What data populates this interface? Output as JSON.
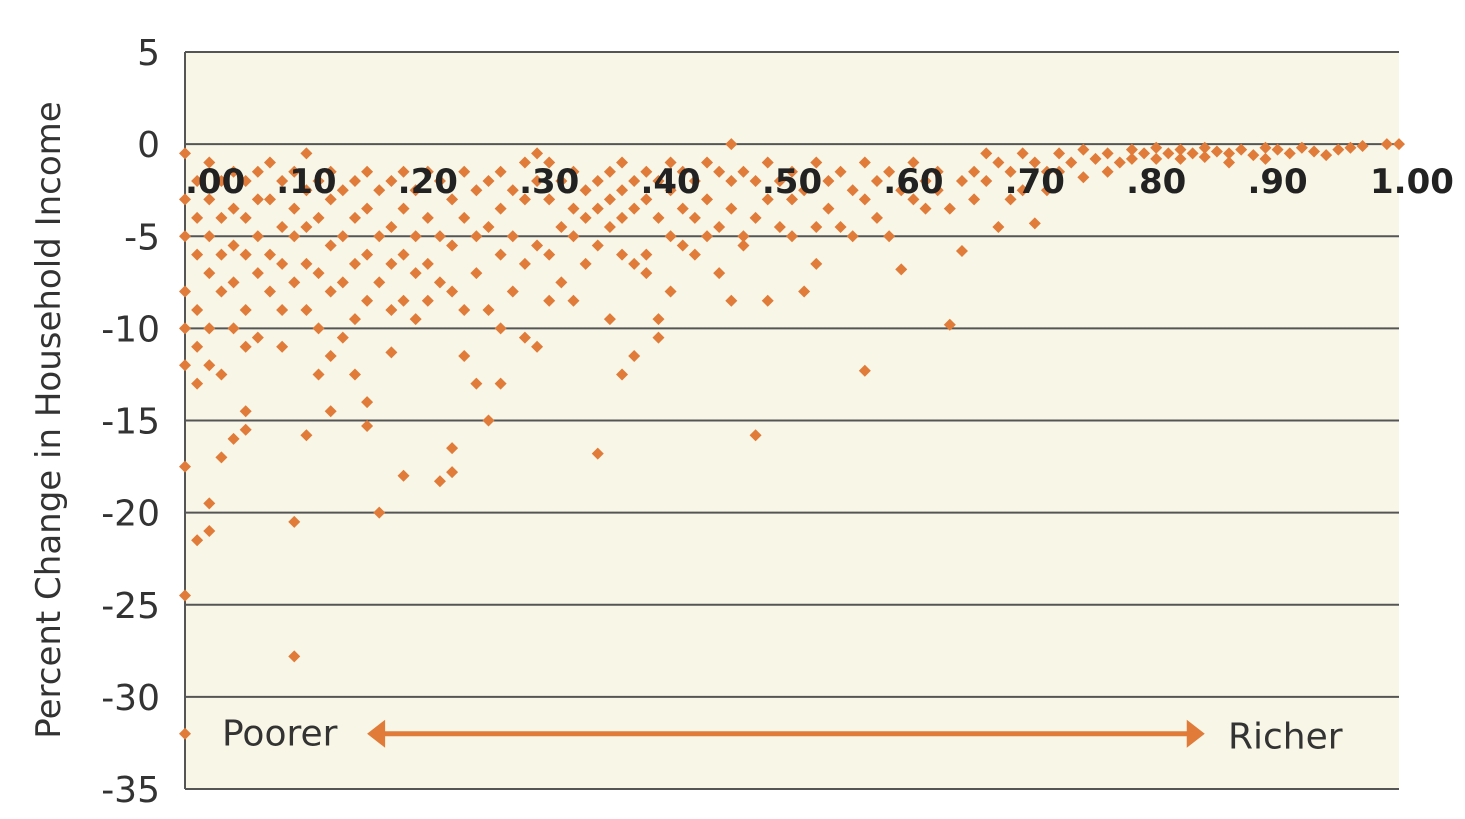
{
  "chart_data": {
    "type": "scatter",
    "title": "",
    "xlabel": "",
    "ylabel": "Percent Change in Household Income",
    "xlim": [
      0,
      1.0
    ],
    "ylim": [
      -35,
      5
    ],
    "x_tick_labels": [
      ".00",
      ".10",
      ".20",
      ".30",
      ".40",
      ".50",
      ".60",
      ".70",
      ".80",
      ".90",
      "1.00"
    ],
    "x_tick_values": [
      0,
      0.1,
      0.2,
      0.3,
      0.4,
      0.5,
      0.6,
      0.7,
      0.8,
      0.9,
      1.0
    ],
    "y_tick_labels": [
      "5",
      "0",
      "-5",
      "-10",
      "-15",
      "-20",
      "-25",
      "-30",
      "-35"
    ],
    "y_tick_values": [
      5,
      0,
      -5,
      -10,
      -15,
      -20,
      -25,
      -30,
      -35
    ],
    "x_tick_label_y": -2,
    "grid": "horizontal",
    "marker_color": "#e07b39",
    "plot_background": "#f8f6e6",
    "annotations": {
      "left": "Poorer",
      "right": "Richer",
      "arrow_y": -32,
      "arrow_from_x": 0.15,
      "arrow_to_x": 0.84
    },
    "points": [
      [
        0.0,
        -0.5
      ],
      [
        0.0,
        -3
      ],
      [
        0.0,
        -5
      ],
      [
        0.0,
        -8
      ],
      [
        0.0,
        -10
      ],
      [
        0.0,
        -12
      ],
      [
        0.0,
        -17.5
      ],
      [
        0.0,
        -24.5
      ],
      [
        0.0,
        -32
      ],
      [
        0.01,
        -2
      ],
      [
        0.01,
        -4
      ],
      [
        0.01,
        -6
      ],
      [
        0.01,
        -9
      ],
      [
        0.01,
        -11
      ],
      [
        0.01,
        -13
      ],
      [
        0.01,
        -21.5
      ],
      [
        0.02,
        -1
      ],
      [
        0.02,
        -3
      ],
      [
        0.02,
        -5
      ],
      [
        0.02,
        -7
      ],
      [
        0.02,
        -10
      ],
      [
        0.02,
        -12
      ],
      [
        0.02,
        -19.5
      ],
      [
        0.02,
        -21
      ],
      [
        0.03,
        -2
      ],
      [
        0.03,
        -4
      ],
      [
        0.03,
        -6
      ],
      [
        0.03,
        -8
      ],
      [
        0.03,
        -12.5
      ],
      [
        0.03,
        -17
      ],
      [
        0.04,
        -1.5
      ],
      [
        0.04,
        -3.5
      ],
      [
        0.04,
        -5.5
      ],
      [
        0.04,
        -7.5
      ],
      [
        0.04,
        -10
      ],
      [
        0.04,
        -16
      ],
      [
        0.05,
        -2
      ],
      [
        0.05,
        -4
      ],
      [
        0.05,
        -6
      ],
      [
        0.05,
        -9
      ],
      [
        0.05,
        -11
      ],
      [
        0.05,
        -14.5
      ],
      [
        0.05,
        -15.5
      ],
      [
        0.06,
        -1.5
      ],
      [
        0.06,
        -3
      ],
      [
        0.06,
        -5
      ],
      [
        0.06,
        -7
      ],
      [
        0.06,
        -10.5
      ],
      [
        0.07,
        -1
      ],
      [
        0.07,
        -3
      ],
      [
        0.07,
        -6
      ],
      [
        0.07,
        -8
      ],
      [
        0.08,
        -2
      ],
      [
        0.08,
        -4.5
      ],
      [
        0.08,
        -6.5
      ],
      [
        0.08,
        -9
      ],
      [
        0.08,
        -11
      ],
      [
        0.09,
        -1.5
      ],
      [
        0.09,
        -3.5
      ],
      [
        0.09,
        -5
      ],
      [
        0.09,
        -7.5
      ],
      [
        0.09,
        -20.5
      ],
      [
        0.09,
        -27.8
      ],
      [
        0.1,
        -0.5
      ],
      [
        0.1,
        -2.5
      ],
      [
        0.1,
        -4.5
      ],
      [
        0.1,
        -6.5
      ],
      [
        0.1,
        -9
      ],
      [
        0.1,
        -15.8
      ],
      [
        0.11,
        -2
      ],
      [
        0.11,
        -4
      ],
      [
        0.11,
        -7
      ],
      [
        0.11,
        -10
      ],
      [
        0.11,
        -12.5
      ],
      [
        0.12,
        -1.5
      ],
      [
        0.12,
        -3
      ],
      [
        0.12,
        -5.5
      ],
      [
        0.12,
        -8
      ],
      [
        0.12,
        -11.5
      ],
      [
        0.12,
        -14.5
      ],
      [
        0.13,
        -2.5
      ],
      [
        0.13,
        -5
      ],
      [
        0.13,
        -7.5
      ],
      [
        0.13,
        -10.5
      ],
      [
        0.14,
        -2
      ],
      [
        0.14,
        -4
      ],
      [
        0.14,
        -6.5
      ],
      [
        0.14,
        -9.5
      ],
      [
        0.14,
        -12.5
      ],
      [
        0.15,
        -1.5
      ],
      [
        0.15,
        -3.5
      ],
      [
        0.15,
        -6
      ],
      [
        0.15,
        -8.5
      ],
      [
        0.15,
        -14
      ],
      [
        0.15,
        -15.3
      ],
      [
        0.16,
        -2.5
      ],
      [
        0.16,
        -5
      ],
      [
        0.16,
        -7.5
      ],
      [
        0.16,
        -20
      ],
      [
        0.17,
        -2
      ],
      [
        0.17,
        -4.5
      ],
      [
        0.17,
        -6.5
      ],
      [
        0.17,
        -9
      ],
      [
        0.17,
        -11.3
      ],
      [
        0.18,
        -1.5
      ],
      [
        0.18,
        -3.5
      ],
      [
        0.18,
        -6
      ],
      [
        0.18,
        -8.5
      ],
      [
        0.18,
        -18
      ],
      [
        0.19,
        -2.5
      ],
      [
        0.19,
        -5
      ],
      [
        0.19,
        -7
      ],
      [
        0.19,
        -9.5
      ],
      [
        0.2,
        -1.5
      ],
      [
        0.2,
        -4
      ],
      [
        0.2,
        -6.5
      ],
      [
        0.2,
        -8.5
      ],
      [
        0.21,
        -2
      ],
      [
        0.21,
        -5
      ],
      [
        0.21,
        -7.5
      ],
      [
        0.21,
        -18.3
      ],
      [
        0.22,
        -3
      ],
      [
        0.22,
        -5.5
      ],
      [
        0.22,
        -8
      ],
      [
        0.22,
        -17.8
      ],
      [
        0.22,
        -16.5
      ],
      [
        0.23,
        -1.5
      ],
      [
        0.23,
        -4
      ],
      [
        0.23,
        -9
      ],
      [
        0.23,
        -11.5
      ],
      [
        0.24,
        -2.5
      ],
      [
        0.24,
        -5
      ],
      [
        0.24,
        -7
      ],
      [
        0.24,
        -13
      ],
      [
        0.25,
        -2
      ],
      [
        0.25,
        -4.5
      ],
      [
        0.25,
        -9
      ],
      [
        0.25,
        -15
      ],
      [
        0.26,
        -1.5
      ],
      [
        0.26,
        -3.5
      ],
      [
        0.26,
        -6
      ],
      [
        0.26,
        -10
      ],
      [
        0.26,
        -13
      ],
      [
        0.27,
        -2.5
      ],
      [
        0.27,
        -5
      ],
      [
        0.27,
        -8
      ],
      [
        0.28,
        -1
      ],
      [
        0.28,
        -3
      ],
      [
        0.28,
        -6.5
      ],
      [
        0.28,
        -10.5
      ],
      [
        0.29,
        -0.5
      ],
      [
        0.29,
        -2
      ],
      [
        0.29,
        -5.5
      ],
      [
        0.29,
        -11
      ],
      [
        0.3,
        -1
      ],
      [
        0.3,
        -3
      ],
      [
        0.3,
        -6
      ],
      [
        0.3,
        -8.5
      ],
      [
        0.31,
        -2
      ],
      [
        0.31,
        -4.5
      ],
      [
        0.31,
        -7.5
      ],
      [
        0.32,
        -1.5
      ],
      [
        0.32,
        -3.5
      ],
      [
        0.32,
        -5
      ],
      [
        0.32,
        -8.5
      ],
      [
        0.33,
        -2.5
      ],
      [
        0.33,
        -4
      ],
      [
        0.33,
        -6.5
      ],
      [
        0.34,
        -2
      ],
      [
        0.34,
        -3.5
      ],
      [
        0.34,
        -5.5
      ],
      [
        0.34,
        -16.8
      ],
      [
        0.35,
        -1.5
      ],
      [
        0.35,
        -3
      ],
      [
        0.35,
        -4.5
      ],
      [
        0.35,
        -9.5
      ],
      [
        0.36,
        -1
      ],
      [
        0.36,
        -2.5
      ],
      [
        0.36,
        -4
      ],
      [
        0.36,
        -6
      ],
      [
        0.36,
        -12.5
      ],
      [
        0.37,
        -2
      ],
      [
        0.37,
        -3.5
      ],
      [
        0.37,
        -6.5
      ],
      [
        0.37,
        -11.5
      ],
      [
        0.38,
        -1.5
      ],
      [
        0.38,
        -3
      ],
      [
        0.38,
        -6
      ],
      [
        0.38,
        -7
      ],
      [
        0.39,
        -2
      ],
      [
        0.39,
        -4
      ],
      [
        0.39,
        -9.5
      ],
      [
        0.39,
        -10.5
      ],
      [
        0.4,
        -1
      ],
      [
        0.4,
        -2.5
      ],
      [
        0.4,
        -5
      ],
      [
        0.4,
        -8
      ],
      [
        0.41,
        -1.5
      ],
      [
        0.41,
        -3.5
      ],
      [
        0.41,
        -5.5
      ],
      [
        0.42,
        -2
      ],
      [
        0.42,
        -4
      ],
      [
        0.42,
        -6
      ],
      [
        0.43,
        -1
      ],
      [
        0.43,
        -3
      ],
      [
        0.43,
        -5
      ],
      [
        0.44,
        -1.5
      ],
      [
        0.44,
        -4.5
      ],
      [
        0.44,
        -7
      ],
      [
        0.45,
        0
      ],
      [
        0.45,
        -2
      ],
      [
        0.45,
        -3.5
      ],
      [
        0.45,
        -8.5
      ],
      [
        0.46,
        -1.5
      ],
      [
        0.46,
        -5
      ],
      [
        0.46,
        -5.5
      ],
      [
        0.47,
        -2
      ],
      [
        0.47,
        -4
      ],
      [
        0.47,
        -15.8
      ],
      [
        0.48,
        -1
      ],
      [
        0.48,
        -3
      ],
      [
        0.48,
        -8.5
      ],
      [
        0.49,
        -2
      ],
      [
        0.49,
        -4.5
      ],
      [
        0.5,
        -1.5
      ],
      [
        0.5,
        -3
      ],
      [
        0.5,
        -5
      ],
      [
        0.51,
        -2.5
      ],
      [
        0.51,
        -8
      ],
      [
        0.52,
        -1
      ],
      [
        0.52,
        -4.5
      ],
      [
        0.52,
        -6.5
      ],
      [
        0.53,
        -2
      ],
      [
        0.53,
        -3.5
      ],
      [
        0.54,
        -1.5
      ],
      [
        0.54,
        -4.5
      ],
      [
        0.55,
        -2.5
      ],
      [
        0.55,
        -5
      ],
      [
        0.56,
        -1
      ],
      [
        0.56,
        -3
      ],
      [
        0.56,
        -12.3
      ],
      [
        0.57,
        -2
      ],
      [
        0.57,
        -4
      ],
      [
        0.58,
        -1.5
      ],
      [
        0.58,
        -5
      ],
      [
        0.59,
        -2.5
      ],
      [
        0.59,
        -6.8
      ],
      [
        0.6,
        -1
      ],
      [
        0.6,
        -3
      ],
      [
        0.61,
        -2
      ],
      [
        0.61,
        -3.5
      ],
      [
        0.62,
        -1.5
      ],
      [
        0.62,
        -2.5
      ],
      [
        0.63,
        -3.5
      ],
      [
        0.63,
        -9.8
      ],
      [
        0.64,
        -2
      ],
      [
        0.64,
        -5.8
      ],
      [
        0.65,
        -1.5
      ],
      [
        0.65,
        -3
      ],
      [
        0.66,
        -0.5
      ],
      [
        0.66,
        -2
      ],
      [
        0.67,
        -1
      ],
      [
        0.67,
        -4.5
      ],
      [
        0.68,
        -1.5
      ],
      [
        0.68,
        -3
      ],
      [
        0.69,
        -0.5
      ],
      [
        0.69,
        -2.5
      ],
      [
        0.7,
        -1
      ],
      [
        0.7,
        -4.3
      ],
      [
        0.71,
        -1.5
      ],
      [
        0.71,
        -2.5
      ],
      [
        0.72,
        -0.5
      ],
      [
        0.72,
        -1.5
      ],
      [
        0.73,
        -1
      ],
      [
        0.74,
        -0.3
      ],
      [
        0.74,
        -1.8
      ],
      [
        0.75,
        -0.8
      ],
      [
        0.76,
        -0.5
      ],
      [
        0.76,
        -1.5
      ],
      [
        0.77,
        -1
      ],
      [
        0.78,
        -0.3
      ],
      [
        0.78,
        -0.8
      ],
      [
        0.79,
        -0.5
      ],
      [
        0.8,
        -0.2
      ],
      [
        0.8,
        -0.8
      ],
      [
        0.81,
        -0.5
      ],
      [
        0.82,
        -0.3
      ],
      [
        0.82,
        -0.8
      ],
      [
        0.83,
        -0.5
      ],
      [
        0.84,
        -0.2
      ],
      [
        0.84,
        -0.7
      ],
      [
        0.85,
        -0.4
      ],
      [
        0.86,
        -0.5
      ],
      [
        0.86,
        -1
      ],
      [
        0.87,
        -0.3
      ],
      [
        0.88,
        -0.6
      ],
      [
        0.89,
        -0.2
      ],
      [
        0.89,
        -0.8
      ],
      [
        0.9,
        -0.3
      ],
      [
        0.91,
        -0.5
      ],
      [
        0.92,
        -0.2
      ],
      [
        0.93,
        -0.4
      ],
      [
        0.94,
        -0.6
      ],
      [
        0.95,
        -0.3
      ],
      [
        0.96,
        -0.2
      ],
      [
        0.97,
        -0.1
      ],
      [
        0.99,
        0
      ],
      [
        1.0,
        0
      ]
    ]
  }
}
